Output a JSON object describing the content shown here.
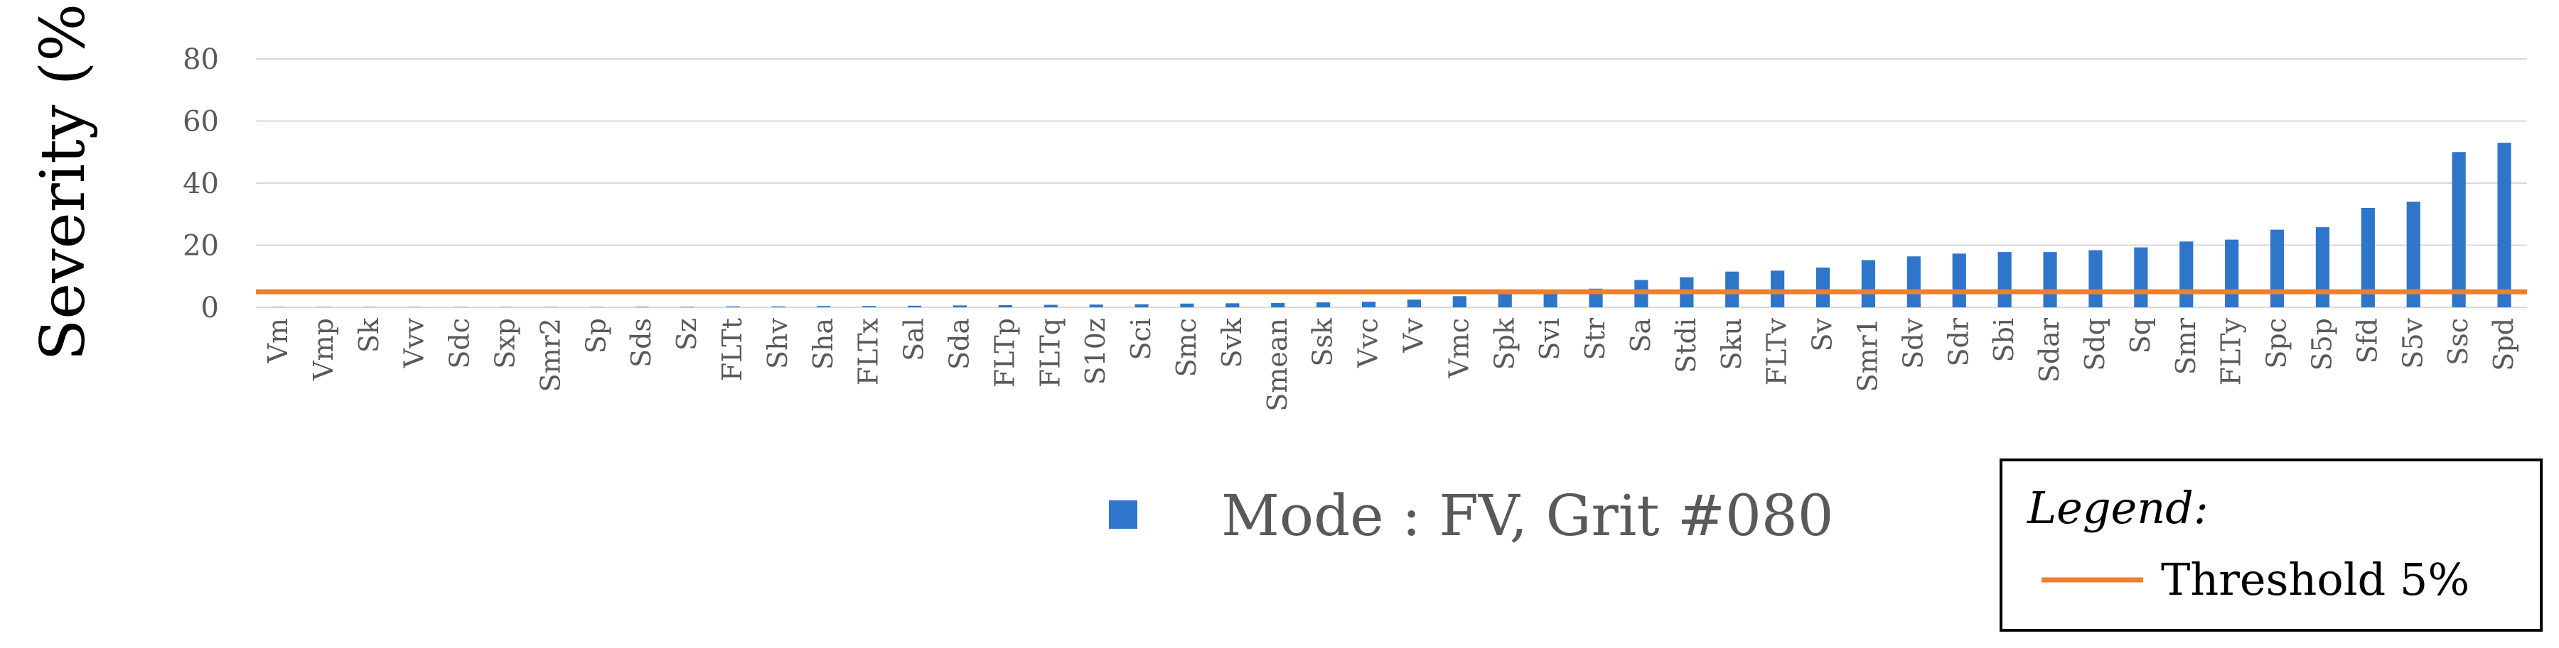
{
  "chart_data": {
    "type": "bar",
    "title": "",
    "xlabel": "",
    "ylabel": "Severity (%)",
    "ylim": [
      0,
      80
    ],
    "yticks": [
      0,
      20,
      40,
      60,
      80
    ],
    "grid": true,
    "categories": [
      "Vm",
      "Vmp",
      "Sk",
      "Vvv",
      "Sdc",
      "Sxp",
      "Smr2",
      "Sp",
      "Sds",
      "Sz",
      "FLTt",
      "Shv",
      "Sha",
      "FLTx",
      "Sal",
      "Sda",
      "FLTp",
      "FLTq",
      "S10z",
      "Sci",
      "Smc",
      "Svk",
      "Smean",
      "Ssk",
      "Vvc",
      "Vv",
      "Vmc",
      "Spk",
      "Svi",
      "Str",
      "Sa",
      "Stdi",
      "Sku",
      "FLTv",
      "Sv",
      "Smr1",
      "Sdv",
      "Sdr",
      "Sbi",
      "Sdar",
      "Sdq",
      "Sq",
      "Smr",
      "FLTy",
      "Spc",
      "S5p",
      "Sfd",
      "S5v",
      "Ssc",
      "Spd"
    ],
    "series": [
      {
        "name": "Mode : FV, Grit #080",
        "color": "#2f75c9",
        "values": [
          0.1,
          0.1,
          0.1,
          0.1,
          0.1,
          0.1,
          0.1,
          0.1,
          0.2,
          0.2,
          0.3,
          0.3,
          0.4,
          0.4,
          0.5,
          0.6,
          0.7,
          0.8,
          0.9,
          1.0,
          1.2,
          1.3,
          1.4,
          1.6,
          1.8,
          2.5,
          3.6,
          4.3,
          5.3,
          6.0,
          8.8,
          9.7,
          11.5,
          11.8,
          12.8,
          15.2,
          16.4,
          17.3,
          17.8,
          17.8,
          18.4,
          19.3,
          21.2,
          21.8,
          25.0,
          25.8,
          32.0,
          34.0,
          50.0,
          53.0
        ]
      }
    ],
    "threshold": {
      "value": 5,
      "label": "Threshold 5%",
      "color": "#f07f2b"
    },
    "legend": {
      "main_position": "bottom-center",
      "box_title": "Legend:",
      "box_position": "bottom-right"
    }
  }
}
